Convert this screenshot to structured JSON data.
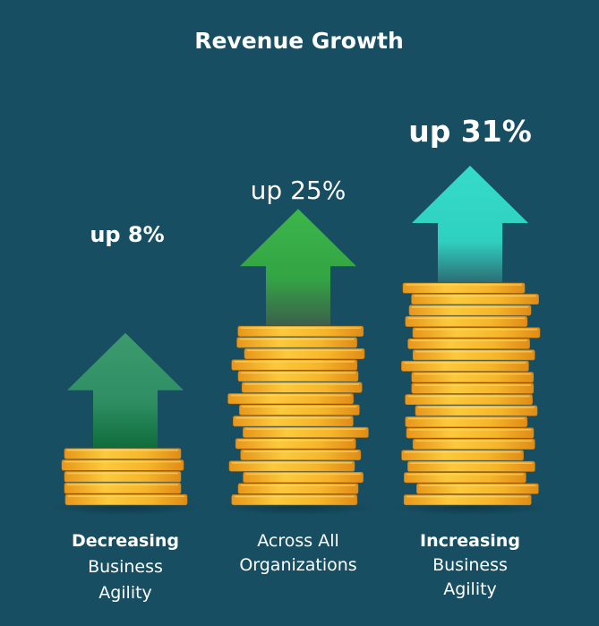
{
  "chart_data": {
    "type": "bar",
    "title": "Revenue Growth",
    "categories": [
      [
        "Decreasing",
        "Business",
        "Agility"
      ],
      [
        "Across All",
        "Organizations"
      ],
      [
        "Increasing",
        "Business",
        "Agility"
      ]
    ],
    "values": [
      8,
      25,
      31
    ],
    "value_labels": [
      "up 8%",
      "up 25%",
      "up 31%"
    ],
    "unit": "%",
    "arrow_colors": [
      "#3c9a6e",
      "#3cb64a",
      "#35dcc9"
    ],
    "coin_color": "#f5b62a",
    "background": "#174e62",
    "grid": false,
    "legend": "none"
  }
}
